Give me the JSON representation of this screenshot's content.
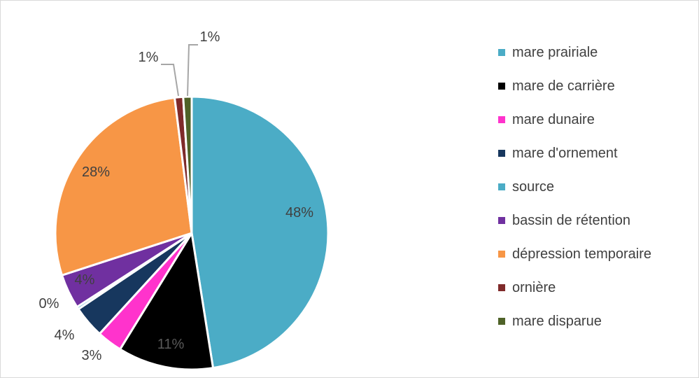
{
  "chart_data": {
    "type": "pie",
    "title": "",
    "start_angle_deg": 0,
    "direction": "clockwise",
    "legend_position": "right",
    "slices": [
      {
        "label": "mare prairiale",
        "value": 47.5,
        "value_label": "48%",
        "color": "#4bacc6",
        "label_color": "#404040"
      },
      {
        "label": "mare de carrière",
        "value": 11.3,
        "value_label": "11%",
        "color": "#000000",
        "label_color": "#595959"
      },
      {
        "label": "mare dunaire",
        "value": 3.0,
        "value_label": "3%",
        "color": "#ff33cc",
        "label_color": "#404040"
      },
      {
        "label": "mare d'ornement",
        "value": 3.8,
        "value_label": "4%",
        "color": "#17375e",
        "label_color": "#404040"
      },
      {
        "label": "source",
        "value": 0.3,
        "value_label": "0%",
        "color": "#4bacc6",
        "label_color": "#404040"
      },
      {
        "label": "bassin de rétention",
        "value": 4.1,
        "value_label": "4%",
        "color": "#7030a0",
        "label_color": "#404040"
      },
      {
        "label": "dépression temporaire",
        "value": 28.0,
        "value_label": "28%",
        "color": "#f79646",
        "label_color": "#404040"
      },
      {
        "label": "ornière",
        "value": 1.0,
        "value_label": "1%",
        "color": "#7f2a2a",
        "label_color": "#404040"
      },
      {
        "label": "mare disparue",
        "value": 1.0,
        "value_label": "1%",
        "color": "#4f6228",
        "label_color": "#404040"
      }
    ]
  }
}
